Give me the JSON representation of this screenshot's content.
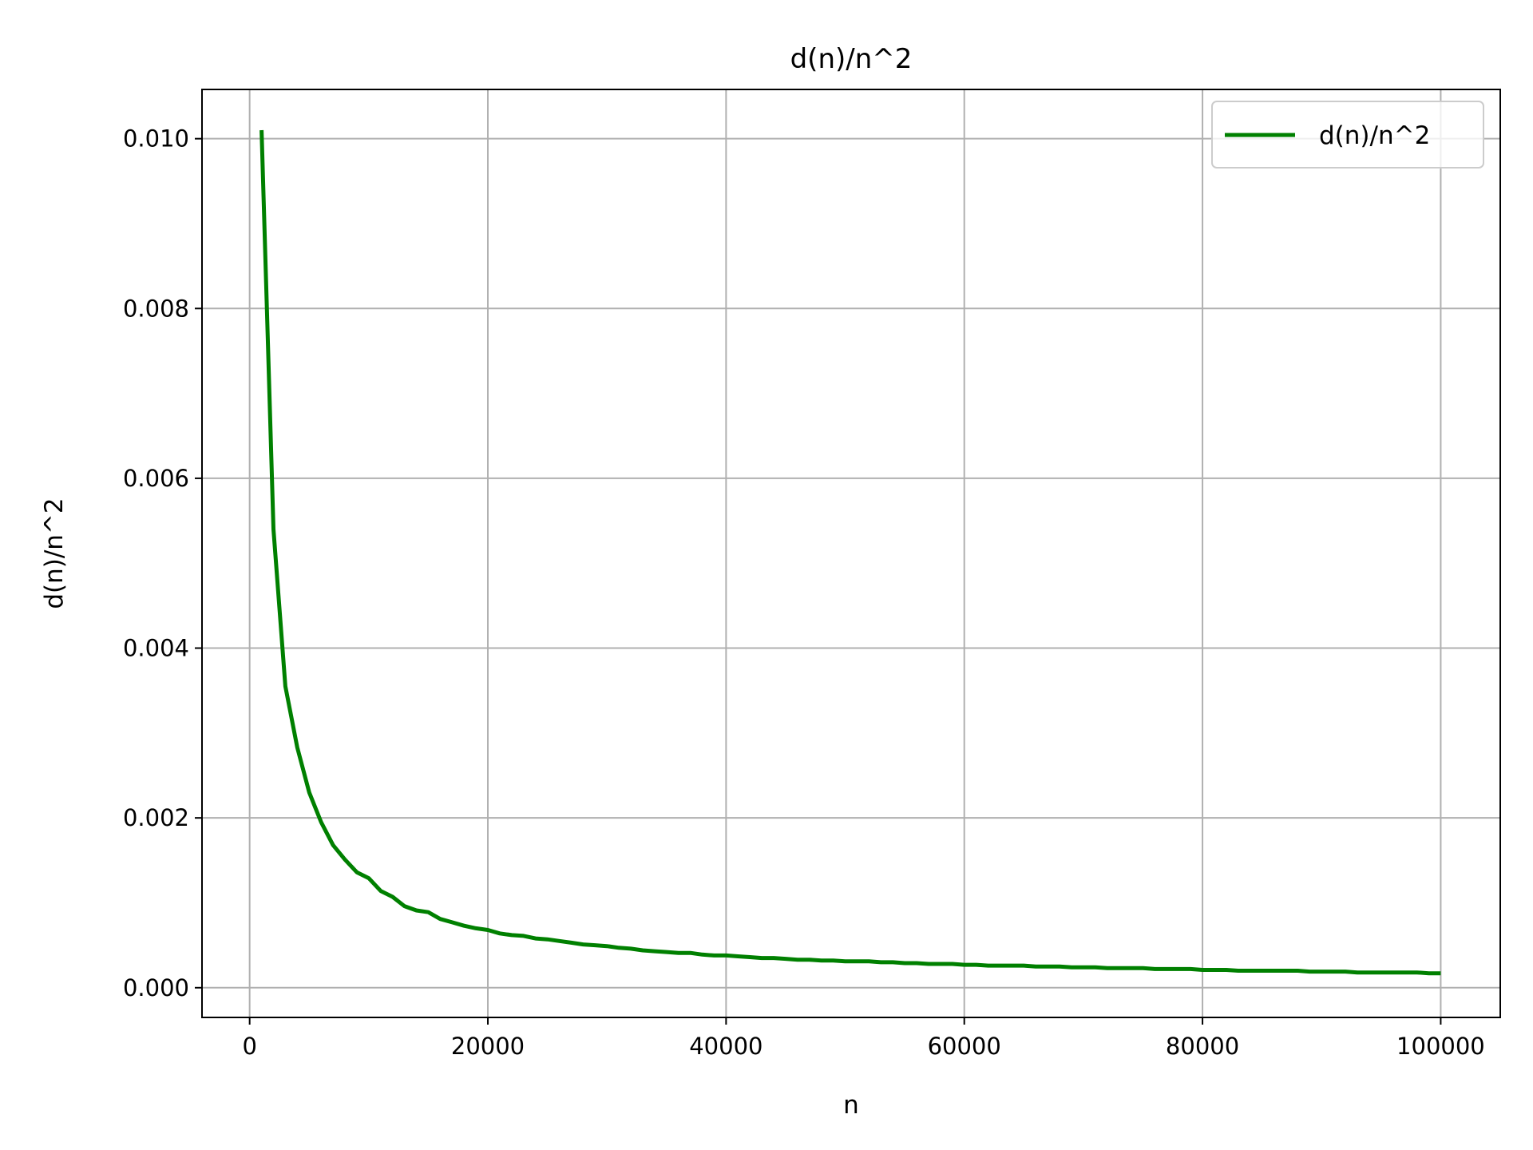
{
  "chart_data": {
    "type": "line",
    "title": "d(n)/n^2",
    "xlabel": "n",
    "ylabel": "d(n)/n^2",
    "xlim": [
      -4000,
      105000
    ],
    "ylim": [
      -0.00035,
      0.01058
    ],
    "x_ticks": [
      0,
      20000,
      40000,
      60000,
      80000,
      100000
    ],
    "x_tick_labels": [
      "0",
      "20000",
      "40000",
      "60000",
      "80000",
      "100000"
    ],
    "y_ticks": [
      0.0,
      0.002,
      0.004,
      0.006,
      0.008,
      0.01
    ],
    "y_tick_labels": [
      "0.000",
      "0.002",
      "0.004",
      "0.006",
      "0.008",
      "0.010"
    ],
    "grid": true,
    "legend": {
      "position": "top-right",
      "entries": [
        "d(n)/n^2"
      ]
    },
    "colors": {
      "line": "#008000",
      "grid": "#b0b0b0",
      "axes": "#000000"
    },
    "series": [
      {
        "name": "d(n)/n^2",
        "x": [
          1000,
          2000,
          3000,
          4000,
          5000,
          6000,
          7000,
          8000,
          9000,
          10000,
          11000,
          12000,
          13000,
          14000,
          15000,
          16000,
          17000,
          18000,
          19000,
          20000,
          21000,
          22000,
          23000,
          24000,
          25000,
          26000,
          27000,
          28000,
          29000,
          30000,
          31000,
          32000,
          33000,
          34000,
          35000,
          36000,
          37000,
          38000,
          39000,
          40000,
          41000,
          42000,
          43000,
          44000,
          45000,
          46000,
          47000,
          48000,
          49000,
          50000,
          51000,
          52000,
          53000,
          54000,
          55000,
          56000,
          57000,
          58000,
          59000,
          60000,
          61000,
          62000,
          63000,
          64000,
          65000,
          66000,
          67000,
          68000,
          69000,
          70000,
          71000,
          72000,
          73000,
          74000,
          75000,
          76000,
          77000,
          78000,
          79000,
          80000,
          81000,
          82000,
          83000,
          84000,
          85000,
          86000,
          87000,
          88000,
          89000,
          90000,
          91000,
          92000,
          93000,
          94000,
          95000,
          96000,
          97000,
          98000,
          99000,
          100000
        ],
        "y": [
          0.0101,
          0.0054,
          0.00355,
          0.00283,
          0.0023,
          0.00195,
          0.00168,
          0.00151,
          0.00136,
          0.00129,
          0.00114,
          0.00107,
          0.00096,
          0.00091,
          0.00089,
          0.00081,
          0.00077,
          0.00073,
          0.0007,
          0.00068,
          0.00064,
          0.00062,
          0.00061,
          0.00058,
          0.00057,
          0.00055,
          0.00053,
          0.00051,
          0.0005,
          0.00049,
          0.00047,
          0.00046,
          0.00044,
          0.00043,
          0.00042,
          0.00041,
          0.00041,
          0.00039,
          0.00038,
          0.00038,
          0.00037,
          0.00036,
          0.00035,
          0.00035,
          0.00034,
          0.00033,
          0.00033,
          0.00032,
          0.00032,
          0.00031,
          0.00031,
          0.00031,
          0.0003,
          0.0003,
          0.00029,
          0.00029,
          0.00028,
          0.00028,
          0.00028,
          0.00027,
          0.00027,
          0.00026,
          0.00026,
          0.00026,
          0.00026,
          0.00025,
          0.00025,
          0.00025,
          0.00024,
          0.00024,
          0.00024,
          0.00023,
          0.00023,
          0.00023,
          0.00023,
          0.00022,
          0.00022,
          0.00022,
          0.00022,
          0.00021,
          0.00021,
          0.00021,
          0.0002,
          0.0002,
          0.0002,
          0.0002,
          0.0002,
          0.0002,
          0.00019,
          0.00019,
          0.00019,
          0.00019,
          0.00018,
          0.00018,
          0.00018,
          0.00018,
          0.00018,
          0.00018,
          0.00017,
          0.00017
        ]
      }
    ]
  }
}
